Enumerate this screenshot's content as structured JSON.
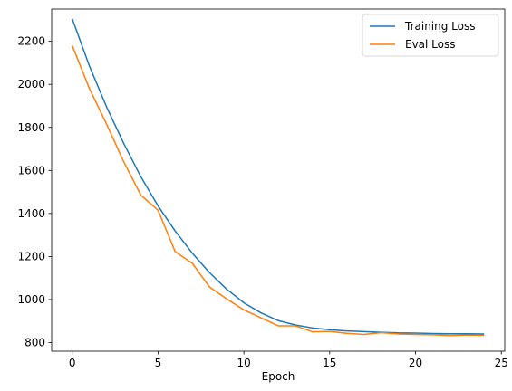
{
  "chart_data": {
    "type": "line",
    "title": "",
    "xlabel": "Epoch",
    "ylabel": "",
    "xlim": [
      -1.2,
      25.2
    ],
    "ylim": [
      760,
      2350
    ],
    "xticks": [
      0,
      5,
      10,
      15,
      20,
      25
    ],
    "yticks": [
      800,
      1000,
      1200,
      1400,
      1600,
      1800,
      2000,
      2200
    ],
    "grid": false,
    "legend_position": "top-right",
    "x": [
      0,
      1,
      2,
      3,
      4,
      5,
      6,
      7,
      8,
      9,
      10,
      11,
      12,
      13,
      14,
      15,
      16,
      17,
      18,
      19,
      20,
      21,
      22,
      23,
      24
    ],
    "series": [
      {
        "name": "Training Loss",
        "color": "#1f77b4",
        "values": [
          2305,
          2085,
          1895,
          1725,
          1570,
          1435,
          1318,
          1215,
          1125,
          1048,
          985,
          938,
          902,
          882,
          868,
          860,
          854,
          851,
          848,
          845,
          844,
          842,
          841,
          841,
          840
        ]
      },
      {
        "name": "Eval Loss",
        "color": "#ff7f0e",
        "values": [
          2180,
          1980,
          1815,
          1640,
          1485,
          1415,
          1222,
          1168,
          1058,
          1003,
          952,
          915,
          878,
          878,
          850,
          852,
          843,
          838,
          846,
          840,
          838,
          836,
          833,
          835,
          834
        ]
      }
    ]
  }
}
